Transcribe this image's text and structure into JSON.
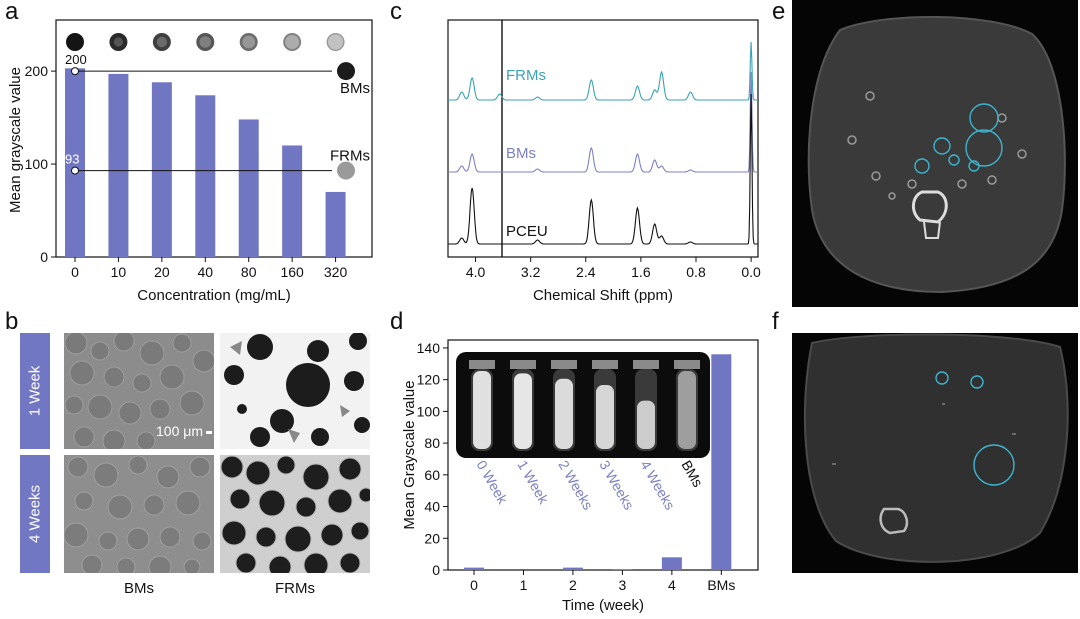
{
  "panels": {
    "a": "a",
    "b": "b",
    "c": "c",
    "d": "d",
    "e": "e",
    "f": "f"
  },
  "colors": {
    "bar": "#7076c2",
    "frm_trace": "#3aa3b3",
    "bm_trace": "#7b80c6",
    "pceu_trace": "#111111",
    "circle": "#3bb6cf",
    "week_label": "#7b80c6"
  },
  "panel_b": {
    "row_labels": [
      "1 Week",
      "4 Weeks"
    ],
    "col_labels": [
      "BMs",
      "FRMs"
    ],
    "scale_bar": "100 μm"
  },
  "panel_c_labels": {
    "frm": "FRMs",
    "bm": "BMs",
    "pceu": "PCEU"
  },
  "chart_data": [
    {
      "type": "bar",
      "categories": [
        "0",
        "10",
        "20",
        "40",
        "80",
        "160",
        "320"
      ],
      "values": [
        203,
        197,
        188,
        174,
        148,
        120,
        70
      ],
      "xlabel": "Concentration (mg/mL)",
      "ylabel": "Mean grayscale value",
      "ylim": [
        0,
        255
      ],
      "yticks": [
        0,
        100,
        200
      ],
      "reference_lines": [
        {
          "value": 200,
          "label": "200",
          "name": "BMs"
        },
        {
          "value": 93,
          "label": "93",
          "name": "FRMs"
        }
      ]
    },
    {
      "type": "line",
      "xlabel": "Chemical Shift (ppm)",
      "xticks": [
        "4.0",
        "3.2",
        "2.4",
        "1.6",
        "0.8",
        "0.0"
      ],
      "xlim": [
        4.4,
        -0.1
      ],
      "series": [
        {
          "name": "FRMs"
        },
        {
          "name": "BMs"
        },
        {
          "name": "PCEU"
        }
      ],
      "peaks_ppm": [
        4.2,
        4.05,
        3.65,
        3.1,
        2.32,
        1.65,
        1.4,
        1.3,
        0.88,
        0.0
      ]
    },
    {
      "type": "bar",
      "categories": [
        "0",
        "1",
        "2",
        "3",
        "4",
        "BMs"
      ],
      "values": [
        1.5,
        0,
        1.5,
        0.5,
        8,
        136
      ],
      "xlabel": "Time (week)",
      "ylabel": "Mean Grayscale value",
      "ylim": [
        0,
        145
      ],
      "yticks": [
        0,
        20,
        40,
        60,
        80,
        100,
        120,
        140
      ],
      "inset_labels": [
        "0 Week",
        "1 Week",
        "2 Weeks",
        "3 Weeks",
        "4 Weeks",
        "BMs"
      ],
      "inset_tube_brightness": [
        0.88,
        0.9,
        0.86,
        0.84,
        0.8,
        0.62
      ],
      "inset_tube_fill": [
        1.0,
        0.97,
        0.9,
        0.82,
        0.62,
        1.0
      ]
    }
  ]
}
